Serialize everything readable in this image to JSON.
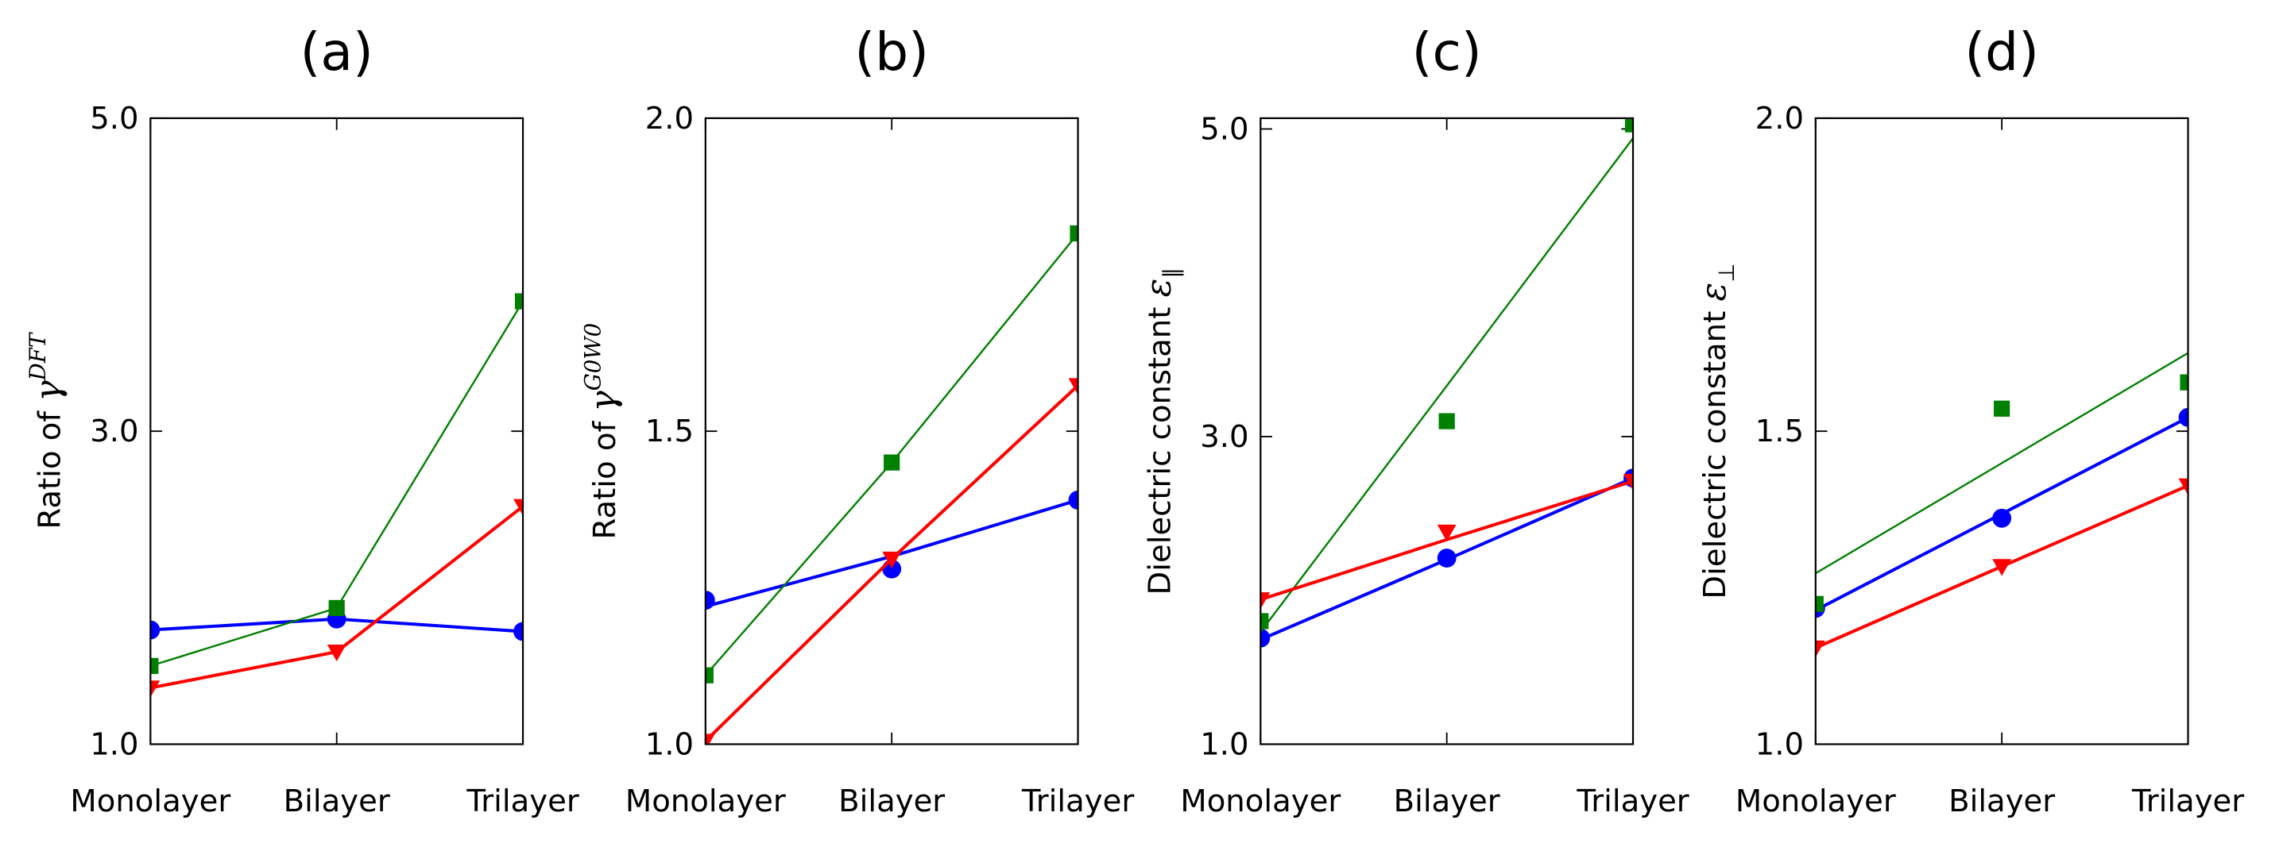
{
  "chart_data": [
    {
      "type": "line",
      "title": "(a)",
      "ylabel": {
        "text": "Ratio of ",
        "symbol": "γ",
        "sup": "DFT"
      },
      "categories": [
        "Monolayer",
        "Bilayer",
        "Trilayer"
      ],
      "ylim": [
        1,
        5
      ],
      "yticks": [
        {
          "value": 1,
          "label": "1.0"
        },
        {
          "value": 3,
          "label": "3.0"
        },
        {
          "value": 5,
          "label": "5.0"
        }
      ],
      "series": [
        {
          "color": "#0000ff",
          "marker": "circle",
          "values": [
            1.73,
            1.8,
            1.72
          ],
          "line_values": [
            1.73,
            1.8,
            1.72
          ]
        },
        {
          "color": "#008000",
          "marker": "square",
          "values": [
            1.5,
            1.87,
            3.83
          ],
          "line_values": [
            1.5,
            1.87,
            3.83
          ]
        },
        {
          "color": "#ff0000",
          "marker": "triangle-down",
          "values": [
            1.36,
            1.59,
            2.52
          ],
          "line_values": [
            1.36,
            1.59,
            2.52
          ]
        }
      ]
    },
    {
      "type": "line",
      "title": "(b)",
      "ylabel": {
        "text": "Ratio of ",
        "symbol": "γ",
        "sup": "G0W0"
      },
      "categories": [
        "Monolayer",
        "Bilayer",
        "Trilayer"
      ],
      "ylim": [
        1,
        2
      ],
      "yticks": [
        {
          "value": 1,
          "label": "1.0"
        },
        1.5,
        {
          "value": 2,
          "label": "2.0"
        }
      ],
      "series": [
        {
          "color": "#0000ff",
          "marker": "circle",
          "values": [
            1.23,
            1.28,
            1.39
          ],
          "line_values": [
            1.22,
            1.3,
            1.39
          ]
        },
        {
          "color": "#008000",
          "marker": "square",
          "values": [
            1.11,
            1.45,
            1.816
          ],
          "line_values": [
            1.11,
            1.45,
            1.816
          ]
        },
        {
          "color": "#ff0000",
          "marker": "triangle-down",
          "values": [
            1.005,
            1.296,
            1.573
          ],
          "line_values": [
            1.005,
            1.296,
            1.573
          ]
        }
      ]
    },
    {
      "type": "line",
      "title": "(c)",
      "ylabel": {
        "text": "Dielectric constant ",
        "symbol": "ε",
        "sub": "∥"
      },
      "categories": [
        "Monolayer",
        "Bilayer",
        "Trilayer"
      ],
      "ylim": [
        1,
        5.07
      ],
      "yticks": [
        {
          "value": 1,
          "label": "1.0"
        },
        {
          "value": 3,
          "label": "3.0"
        },
        {
          "value": 5,
          "label": "5.0"
        }
      ],
      "series": [
        {
          "color": "#0000ff",
          "marker": "circle",
          "values": [
            1.69,
            2.21,
            2.73
          ],
          "line_values": [
            1.68,
            2.2,
            2.73
          ]
        },
        {
          "color": "#008000",
          "marker": "square",
          "values": [
            1.8,
            3.1,
            5.03
          ],
          "line_values": [
            1.73,
            3.33,
            4.94
          ]
        },
        {
          "color": "#ff0000",
          "marker": "triangle-down",
          "values": [
            1.94,
            2.38,
            2.71
          ],
          "line_values": [
            1.94,
            2.33,
            2.71
          ]
        }
      ]
    },
    {
      "type": "line",
      "title": "(d)",
      "ylabel": {
        "text": "Dielectric constant ",
        "symbol": "ε",
        "sub": "⊥"
      },
      "categories": [
        "Monolayer",
        "Bilayer",
        "Trilayer"
      ],
      "ylim": [
        1,
        2
      ],
      "yticks": [
        {
          "value": 1,
          "label": "1.0"
        },
        1.5,
        {
          "value": 2,
          "label": "2.0"
        }
      ],
      "series": [
        {
          "color": "#0000ff",
          "marker": "circle",
          "values": [
            1.217,
            1.361,
            1.522
          ],
          "line_values": [
            1.214,
            1.368,
            1.522
          ]
        },
        {
          "color": "#008000",
          "marker": "square",
          "values": [
            1.224,
            1.536,
            1.578
          ],
          "line_values": [
            1.273,
            1.449,
            1.625
          ]
        },
        {
          "color": "#ff0000",
          "marker": "triangle-down",
          "values": [
            1.154,
            1.284,
            1.413
          ],
          "line_values": [
            1.154,
            1.284,
            1.413
          ]
        }
      ]
    }
  ]
}
